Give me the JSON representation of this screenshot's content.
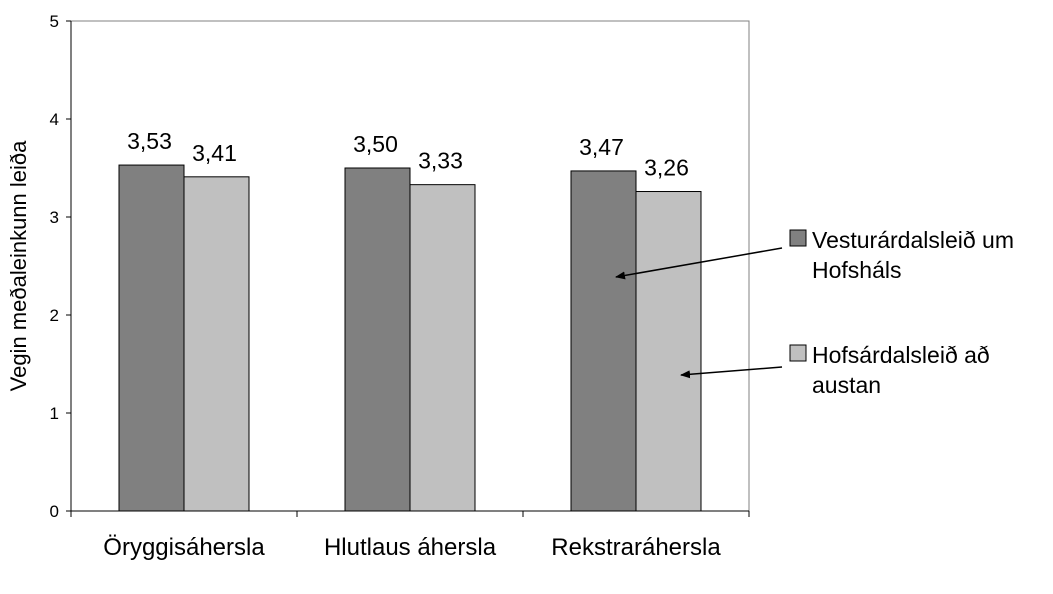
{
  "chart_data": {
    "type": "bar",
    "title": "",
    "xlabel": "",
    "ylabel": "Vegin meðaleinkunn leiða",
    "ylim": [
      0,
      5
    ],
    "yticks": [
      "0",
      "1",
      "2",
      "3",
      "4",
      "5"
    ],
    "categories": [
      "Öryggisáhersla",
      "Hlutlaus áhersla",
      "Rekstraráhersla"
    ],
    "series": [
      {
        "name_lines": [
          "Vesturárdalsleið um",
          "Hofsháls"
        ],
        "values": [
          3.53,
          3.5,
          3.47
        ],
        "labels": [
          "3,53",
          "3,50",
          "3,47"
        ],
        "color": "#808080"
      },
      {
        "name_lines": [
          "Hofsárdalsleið að",
          "austan"
        ],
        "values": [
          3.41,
          3.33,
          3.26
        ],
        "labels": [
          "3,41",
          "3,33",
          "3,26"
        ],
        "color": "#c0c0c0"
      }
    ],
    "grid": false,
    "legend_position": "right",
    "annotations": "arrows from legend entries to the Rekstraráhersla bars"
  }
}
